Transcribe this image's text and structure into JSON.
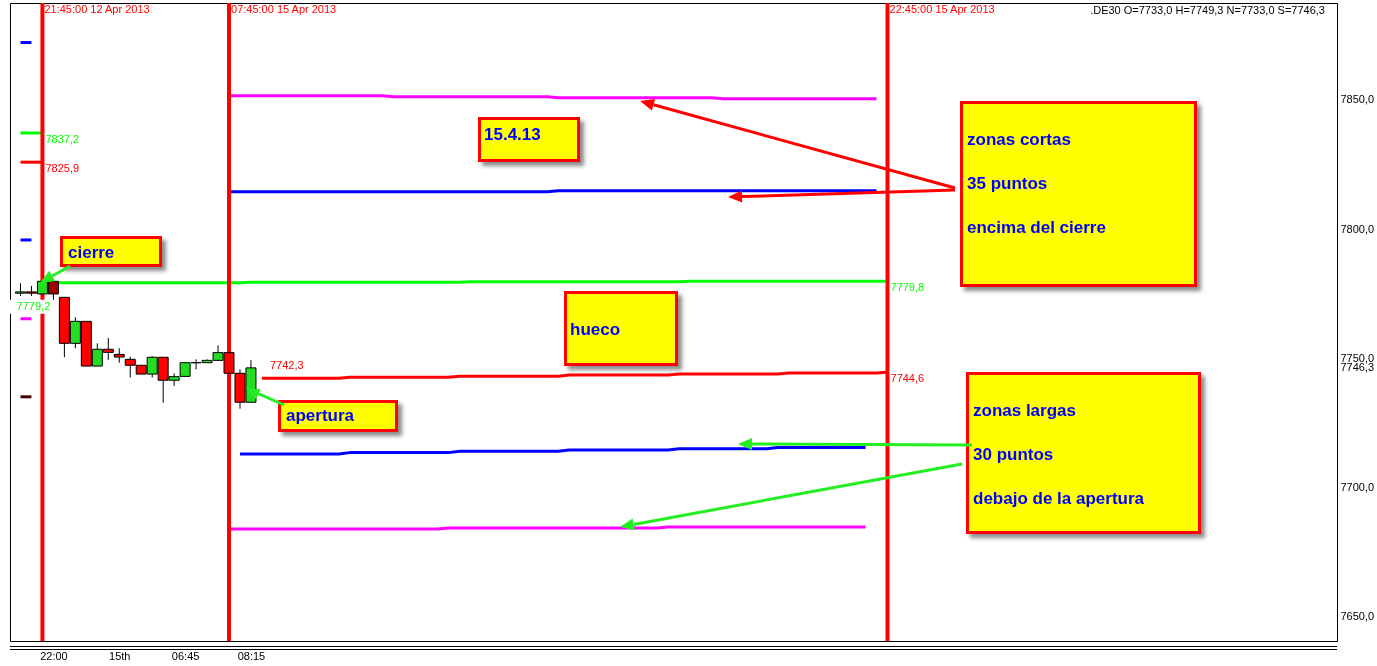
{
  "chart_data": {
    "type": "candlestick",
    "title": ".DE30 O=7733,0 H=7749,3 N=7733,0 S=7746,3",
    "categories": [
      null,
      null,
      null,
      "22:00",
      null,
      null,
      null,
      null,
      null,
      "15th",
      null,
      null,
      null,
      null,
      null,
      "06:45",
      null,
      null,
      null,
      null,
      null,
      "08:15",
      null,
      null,
      null,
      null,
      null,
      null,
      null,
      null,
      null,
      null,
      null,
      null,
      null,
      null,
      null,
      null,
      null,
      null,
      null,
      null,
      null,
      null,
      null,
      null,
      null,
      null,
      null,
      null,
      null,
      null,
      null,
      null,
      null,
      null,
      null,
      null,
      null,
      null,
      null,
      null,
      null,
      null,
      null,
      null,
      null,
      null,
      null,
      null,
      null,
      null,
      null,
      null,
      null,
      null,
      null,
      null,
      null,
      null,
      null,
      null,
      null,
      null,
      null,
      null,
      null,
      null,
      null,
      null,
      null,
      null,
      null,
      null,
      null,
      null,
      null,
      null,
      null,
      null,
      null,
      null,
      null,
      null,
      null,
      null,
      null,
      null,
      null,
      null,
      null,
      null,
      null,
      null,
      null,
      null,
      null,
      null,
      null,
      null
    ],
    "ohlc": [
      [
        7775.2,
        7779.0,
        7774.1,
        7775.7
      ],
      [
        7775.7,
        7778.0,
        7774.1,
        7775.2
      ],
      [
        7774.9,
        7779.8,
        7774.9,
        7779.8
      ],
      [
        7779.8,
        7779.8,
        7772.6,
        7774.9
      ],
      [
        7773.6,
        7773.6,
        7750.4,
        7755.8
      ],
      [
        7755.8,
        7765.9,
        7753.9,
        7764.3
      ],
      [
        7764.3,
        7764.3,
        7747.0,
        7747.0
      ],
      [
        7747.0,
        7755.8,
        7747.0,
        7753.5
      ],
      [
        7753.5,
        7757.9,
        7749.4,
        7752.3
      ],
      [
        7751.5,
        7753.9,
        7748.3,
        7750.5
      ],
      [
        7749.6,
        7750.6,
        7742.6,
        7747.3
      ],
      [
        7747.3,
        7747.3,
        7743.9,
        7743.9
      ],
      [
        7743.9,
        7750.9,
        7742.6,
        7750.4
      ],
      [
        7750.4,
        7750.4,
        7732.8,
        7741.5
      ],
      [
        7741.5,
        7744.2,
        7739.3,
        7742.9
      ],
      [
        7743.0,
        7748.3,
        7743.0,
        7748.3
      ],
      [
        7748.3,
        7749.6,
        7745.7,
        7748.3
      ],
      [
        7748.3,
        7749.6,
        7748.3,
        7749.2
      ],
      [
        7749.2,
        7755.0,
        7749.2,
        7752.2
      ],
      [
        7752.2,
        7752.2,
        7744.2,
        7744.2
      ],
      [
        7744.2,
        7745.7,
        7730.5,
        7733.0
      ],
      [
        7733.0,
        7749.3,
        7733.0,
        7746.3
      ],
      null,
      null,
      null,
      null,
      null,
      null,
      null,
      null,
      null,
      null,
      null,
      null,
      null,
      null,
      null,
      null,
      null,
      null,
      null,
      null,
      null,
      null,
      null,
      null,
      null,
      null,
      null,
      null,
      null,
      null,
      null,
      null,
      null,
      null,
      null,
      null,
      null,
      null,
      null,
      null,
      null,
      null,
      null,
      null,
      null,
      null,
      null,
      null,
      null,
      null,
      null,
      null,
      null,
      null,
      null,
      null,
      null,
      null,
      null,
      null,
      null,
      null,
      null,
      null,
      null,
      null,
      null,
      null,
      null,
      null,
      null,
      null,
      null,
      null,
      null,
      null,
      null,
      null,
      null,
      null,
      null,
      null,
      null,
      null,
      null,
      null,
      null,
      null,
      null,
      null,
      null,
      null,
      null,
      null,
      null,
      null,
      null,
      null
    ],
    "colors": [
      "#22dd22",
      "#ff0000",
      "#22dd22",
      "#a00000",
      "#ff0000",
      "#22dd22",
      "#ff0000",
      "#22dd22",
      "#ff0000",
      "#ff0000",
      "#ff0000",
      "#ff0000",
      "#22dd22",
      "#ff0000",
      "#22dd22",
      "#22dd22",
      "#000000",
      "#22dd22",
      "#22dd22",
      "#ff0000",
      "#ff0000",
      "#22dd22",
      null,
      null,
      null,
      null,
      null,
      null,
      null,
      null,
      null,
      null,
      null,
      null,
      null,
      null,
      null,
      null,
      null,
      null,
      null,
      null,
      null,
      null,
      null,
      null,
      null,
      null,
      null,
      null,
      null,
      null,
      null,
      null,
      null,
      null,
      null,
      null,
      null,
      null,
      null,
      null,
      null,
      null,
      null,
      null,
      null,
      null,
      null,
      null,
      null,
      null,
      null,
      null,
      null,
      null,
      null,
      null,
      null,
      null,
      null,
      null,
      null,
      null,
      null,
      null,
      null,
      null,
      null,
      null,
      null,
      null,
      null,
      null,
      null,
      null,
      null,
      null,
      null,
      null,
      null,
      null,
      null,
      null,
      null,
      null,
      null,
      null,
      null,
      null,
      null,
      null,
      null,
      null,
      null,
      null,
      null,
      null,
      null,
      null
    ],
    "ylim": [
      7640.6,
      7887.5
    ],
    "yticks": [
      {
        "value": 7650,
        "label": "7650,0"
      },
      {
        "value": 7700,
        "label": "7700,0"
      },
      {
        "value": 7746.3,
        "label": "7746,3"
      },
      {
        "value": 7750,
        "label": "7750,0"
      },
      {
        "value": 7800,
        "label": "7800,0"
      },
      {
        "value": 7850,
        "label": "7850,0"
      }
    ],
    "series": [
      {
        "type": "line",
        "color": "#0000ff",
        "values": [
          7872.2,
          7872.2,
          null,
          null,
          null,
          null,
          null,
          null,
          null,
          null,
          null,
          null,
          null,
          null,
          null,
          null,
          null,
          null,
          null,
          null,
          null,
          null,
          null,
          null,
          null,
          null,
          null,
          null,
          null,
          null,
          null,
          null,
          null,
          null,
          null,
          null,
          null,
          null,
          null,
          null,
          null,
          null,
          null,
          null,
          null,
          null,
          null,
          null,
          null,
          null,
          null,
          null,
          null,
          null,
          null,
          null,
          null,
          null,
          null,
          null,
          null,
          null,
          null,
          null,
          null,
          null,
          null,
          null,
          null,
          null,
          null,
          null,
          null,
          null,
          null,
          null,
          null,
          null,
          null,
          null,
          null,
          null,
          null,
          null,
          null,
          null,
          null,
          null,
          null,
          null,
          null,
          null,
          null,
          null,
          null,
          null,
          null,
          null,
          null,
          null,
          null,
          null,
          null,
          null,
          null,
          null,
          null,
          null,
          null,
          null,
          null,
          null,
          null,
          null,
          null,
          null,
          null,
          null,
          null,
          null
        ]
      },
      {
        "type": "line",
        "color": "#00ff00",
        "values": [
          7837.2,
          7837.2,
          7837.2,
          null,
          null,
          null,
          null,
          null,
          null,
          null,
          null,
          null,
          null,
          null,
          null,
          null,
          null,
          null,
          null,
          null,
          null,
          null,
          null,
          null,
          null,
          null,
          null,
          null,
          null,
          null,
          null,
          null,
          null,
          null,
          null,
          null,
          null,
          null,
          null,
          null,
          null,
          null,
          null,
          null,
          null,
          null,
          null,
          null,
          null,
          null,
          null,
          null,
          null,
          null,
          null,
          null,
          null,
          null,
          null,
          null,
          null,
          null,
          null,
          null,
          null,
          null,
          null,
          null,
          null,
          null,
          null,
          null,
          null,
          null,
          null,
          null,
          null,
          null,
          null,
          null,
          null,
          null,
          null,
          null,
          null,
          null,
          null,
          null,
          null,
          null,
          null,
          null,
          null,
          null,
          null,
          null,
          null,
          null,
          null,
          null,
          null,
          null,
          null,
          null,
          null,
          null,
          null,
          null,
          null,
          null,
          null,
          null,
          null,
          null,
          null,
          null,
          null,
          null,
          null,
          null
        ],
        "value_labels": [
          null,
          null,
          "7837,2",
          null,
          null,
          null,
          null,
          null,
          null,
          null,
          null,
          null,
          null,
          null,
          null,
          null,
          null,
          null,
          null,
          null,
          null,
          null,
          null,
          null,
          null,
          null,
          null,
          null,
          null,
          null,
          null,
          null,
          null,
          null,
          null,
          null,
          null,
          null,
          null,
          null,
          null,
          null,
          null,
          null,
          null,
          null,
          null,
          null,
          null,
          null,
          null,
          null,
          null,
          null,
          null,
          null,
          null,
          null,
          null,
          null,
          null,
          null,
          null,
          null,
          null,
          null,
          null,
          null,
          null,
          null,
          null,
          null,
          null,
          null,
          null,
          null,
          null,
          null,
          null,
          null,
          null,
          null,
          null,
          null,
          null,
          null,
          null,
          null,
          null,
          null,
          null,
          null,
          null,
          null,
          null,
          null,
          null,
          null,
          null,
          null,
          null,
          null,
          null,
          null,
          null,
          null,
          null,
          null,
          null,
          null,
          null,
          null,
          null,
          null,
          null,
          null,
          null,
          null,
          null,
          null
        ]
      },
      {
        "type": "line",
        "color": "#ff0000",
        "values": [
          7825.9,
          7825.9,
          7825.9,
          null,
          null,
          null,
          null,
          null,
          null,
          null,
          null,
          null,
          null,
          null,
          null,
          null,
          null,
          null,
          null,
          null,
          null,
          null,
          null,
          null,
          null,
          null,
          null,
          null,
          null,
          null,
          null,
          null,
          null,
          null,
          null,
          null,
          null,
          null,
          null,
          null,
          null,
          null,
          null,
          null,
          null,
          null,
          null,
          null,
          null,
          null,
          null,
          null,
          null,
          null,
          null,
          null,
          null,
          null,
          null,
          null,
          null,
          null,
          null,
          null,
          null,
          null,
          null,
          null,
          null,
          null,
          null,
          null,
          null,
          null,
          null,
          null,
          null,
          null,
          null,
          null,
          null,
          null,
          null,
          null,
          null,
          null,
          null,
          null,
          null,
          null,
          null,
          null,
          null,
          null,
          null,
          null,
          null,
          null,
          null,
          null,
          null,
          null,
          null,
          null,
          null,
          null,
          null,
          null,
          null,
          null,
          null,
          null,
          null,
          null,
          null,
          null,
          null,
          null,
          null,
          null
        ],
        "value_labels": [
          null,
          null,
          "7825,9",
          null,
          null,
          null,
          null,
          null,
          null,
          null,
          null,
          null,
          null,
          null,
          null,
          null,
          null,
          null,
          null,
          null,
          null,
          null,
          null,
          null,
          null,
          null,
          null,
          null,
          null,
          null,
          null,
          null,
          null,
          null,
          null,
          null,
          null,
          null,
          null,
          null,
          null,
          null,
          null,
          null,
          null,
          null,
          null,
          null,
          null,
          null,
          null,
          null,
          null,
          null,
          null,
          null,
          null,
          null,
          null,
          null,
          null,
          null,
          null,
          null,
          null,
          null,
          null,
          null,
          null,
          null,
          null,
          null,
          null,
          null,
          null,
          null,
          null,
          null,
          null,
          null,
          null,
          null,
          null,
          null,
          null,
          null,
          null,
          null,
          null,
          null,
          null,
          null,
          null,
          null,
          null,
          null,
          null,
          null,
          null,
          null,
          null,
          null,
          null,
          null,
          null,
          null,
          null,
          null,
          null,
          null,
          null,
          null,
          null,
          null,
          null,
          null,
          null,
          null,
          null,
          null
        ]
      },
      {
        "type": "line",
        "color": "#0000ff",
        "values": [
          7795.8,
          7795.8,
          null,
          null,
          null,
          null,
          null,
          null,
          null,
          null,
          null,
          null,
          null,
          null,
          null,
          null,
          null,
          null,
          null,
          null,
          null,
          null,
          null,
          null,
          null,
          null,
          null,
          null,
          null,
          null,
          null,
          null,
          null,
          null,
          null,
          null,
          null,
          null,
          null,
          null,
          null,
          null,
          null,
          null,
          null,
          null,
          null,
          null,
          null,
          null,
          null,
          null,
          null,
          null,
          null,
          null,
          null,
          null,
          null,
          null,
          null,
          null,
          null,
          null,
          null,
          null,
          null,
          null,
          null,
          null,
          null,
          null,
          null,
          null,
          null,
          null,
          null,
          null,
          null,
          null,
          null,
          null,
          null,
          null,
          null,
          null,
          null,
          null,
          null,
          null,
          null,
          null,
          null,
          null,
          null,
          null,
          null,
          null,
          null,
          null,
          null,
          null,
          null,
          null,
          null,
          null,
          null,
          null,
          null,
          null,
          null,
          null,
          null,
          null,
          null,
          null,
          null,
          null,
          null,
          null
        ]
      },
      {
        "type": "line",
        "color": "#ff00ff",
        "values": [
          7765.3,
          7765.3,
          null,
          null,
          null,
          null,
          null,
          null,
          null,
          null,
          null,
          null,
          null,
          null,
          null,
          null,
          null,
          null,
          null,
          null,
          null,
          null,
          null,
          null,
          null,
          null,
          null,
          null,
          null,
          null,
          null,
          null,
          null,
          null,
          null,
          null,
          null,
          null,
          null,
          null,
          null,
          null,
          null,
          null,
          null,
          null,
          null,
          null,
          null,
          null,
          null,
          null,
          null,
          null,
          null,
          null,
          null,
          null,
          null,
          null,
          null,
          null,
          null,
          null,
          null,
          null,
          null,
          null,
          null,
          null,
          null,
          null,
          null,
          null,
          null,
          null,
          null,
          null,
          null,
          null,
          null,
          null,
          null,
          null,
          null,
          null,
          null,
          null,
          null,
          null,
          null,
          null,
          null,
          null,
          null,
          null,
          null,
          null,
          null,
          null,
          null,
          null,
          null,
          null,
          null,
          null,
          null,
          null,
          null,
          null,
          null,
          null,
          null,
          null,
          null,
          null,
          null,
          null,
          null,
          null
        ]
      },
      {
        "type": "line",
        "color": "#400000",
        "values": [
          7735.1,
          7735.1,
          null,
          null,
          null,
          null,
          null,
          null,
          null,
          null,
          null,
          null,
          null,
          null,
          null,
          null,
          null,
          null,
          null,
          null,
          null,
          null,
          null,
          null,
          null,
          null,
          null,
          null,
          null,
          null,
          null,
          null,
          null,
          null,
          null,
          null,
          null,
          null,
          null,
          null,
          null,
          null,
          null,
          null,
          null,
          null,
          null,
          null,
          null,
          null,
          null,
          null,
          null,
          null,
          null,
          null,
          null,
          null,
          null,
          null,
          null,
          null,
          null,
          null,
          null,
          null,
          null,
          null,
          null,
          null,
          null,
          null,
          null,
          null,
          null,
          null,
          null,
          null,
          null,
          null,
          null,
          null,
          null,
          null,
          null,
          null,
          null,
          null,
          null,
          null,
          null,
          null,
          null,
          null,
          null,
          null,
          null,
          null,
          null,
          null,
          null,
          null,
          null,
          null,
          null,
          null,
          null,
          null,
          null,
          null,
          null,
          null,
          null,
          null,
          null,
          null,
          null,
          null,
          null,
          null
        ]
      },
      {
        "type": "line",
        "color": "#ff00ff",
        "values": [
          null,
          null,
          null,
          null,
          null,
          null,
          null,
          null,
          null,
          null,
          null,
          null,
          null,
          null,
          null,
          null,
          null,
          null,
          null,
          7851.6,
          7851.6,
          7851.6,
          7851.6,
          7851.6,
          7851.6,
          7851.6,
          7851.6,
          7851.6,
          7851.6,
          7851.6,
          7851.6,
          7851.6,
          7851.6,
          7851.6,
          7851.2,
          7851.2,
          7851.2,
          7851.2,
          7851.2,
          7851.2,
          7851.2,
          7851.2,
          7851.2,
          7851.2,
          7851.2,
          7851.2,
          7851.2,
          7851.2,
          7851.2,
          7850.8,
          7850.8,
          7850.8,
          7850.8,
          7850.8,
          7850.8,
          7850.8,
          7850.8,
          7850.8,
          7850.8,
          7850.8,
          7850.8,
          7850.8,
          7850.8,
          7850.8,
          7850.4,
          7850.4,
          7850.4,
          7850.4,
          7850.4,
          7850.4,
          7850.4,
          7850.4,
          7850.4,
          7850.4,
          7850.4,
          7850.4,
          7850.4,
          7850.4,
          7850.4,
          null,
          null,
          null,
          null,
          null,
          null,
          null,
          null,
          null,
          null,
          null,
          null,
          null,
          null,
          null,
          null,
          null,
          null,
          null,
          null,
          null,
          null,
          null,
          null,
          null,
          null,
          null,
          null,
          null,
          null,
          null,
          null,
          null,
          null,
          null,
          null,
          null,
          null,
          null,
          null,
          null
        ]
      },
      {
        "type": "line",
        "color": "#0000ff",
        "values": [
          null,
          null,
          null,
          null,
          null,
          null,
          null,
          null,
          null,
          null,
          null,
          null,
          null,
          null,
          null,
          null,
          null,
          null,
          null,
          7814.5,
          7814.5,
          7814.5,
          7814.5,
          7814.5,
          7814.5,
          7814.5,
          7814.5,
          7814.5,
          7814.5,
          7814.5,
          7814.5,
          7814.5,
          7814.5,
          7814.5,
          7814.5,
          7814.5,
          7814.5,
          7814.5,
          7814.5,
          7814.5,
          7814.5,
          7814.5,
          7814.5,
          7814.5,
          7814.5,
          7814.5,
          7814.5,
          7814.5,
          7814.5,
          7814.8,
          7814.8,
          7814.8,
          7814.8,
          7814.8,
          7814.8,
          7814.8,
          7814.8,
          7814.8,
          7814.8,
          7814.8,
          7814.8,
          7814.8,
          7814.8,
          7814.8,
          7814.8,
          7814.8,
          7814.8,
          7814.8,
          7814.8,
          7814.8,
          7814.8,
          7814.8,
          7814.8,
          7814.8,
          7814.8,
          7814.8,
          7814.8,
          7814.8,
          7814.8,
          null,
          null,
          null,
          null,
          null,
          null,
          null,
          null,
          null,
          null,
          null,
          null,
          null,
          null,
          null,
          null,
          null,
          null,
          null,
          null,
          null,
          null,
          null,
          null,
          null,
          null,
          null,
          null,
          null,
          null,
          null,
          null,
          null,
          null,
          null,
          null,
          null,
          null,
          null,
          null,
          null
        ]
      },
      {
        "type": "line",
        "color": "#00ff00",
        "values": [
          null,
          null,
          7779.2,
          7779.2,
          7779.2,
          7779.2,
          7779.2,
          7779.2,
          7779.2,
          7779.2,
          7779.2,
          7779.2,
          7779.2,
          7779.2,
          7779.2,
          7779.2,
          7779.2,
          7779.2,
          7779.2,
          7779.2,
          7779.2,
          7779.4,
          7779.4,
          7779.4,
          7779.4,
          7779.4,
          7779.4,
          7779.4,
          7779.4,
          7779.4,
          7779.4,
          7779.4,
          7779.4,
          7779.4,
          7779.4,
          7779.4,
          7779.4,
          7779.4,
          7779.4,
          7779.4,
          7779.4,
          7779.6,
          7779.6,
          7779.6,
          7779.6,
          7779.6,
          7779.6,
          7779.6,
          7779.6,
          7779.6,
          7779.6,
          7779.6,
          7779.6,
          7779.6,
          7779.6,
          7779.6,
          7779.6,
          7779.6,
          7779.6,
          7779.6,
          7779.6,
          7779.8,
          7779.8,
          7779.8,
          7779.8,
          7779.8,
          7779.8,
          7779.8,
          7779.8,
          7779.8,
          7779.8,
          7779.8,
          7779.8,
          7779.8,
          7779.8,
          7779.8,
          7779.8,
          7779.8,
          7779.8,
          7779.8,
          null,
          null,
          null,
          null,
          null,
          null,
          null,
          null,
          null,
          null,
          null,
          null,
          null,
          null,
          null,
          null,
          null,
          null,
          null,
          null,
          null,
          null,
          null,
          null,
          null,
          null,
          null,
          null,
          null,
          null,
          null,
          null,
          null,
          null,
          null,
          null,
          null,
          null,
          null,
          null
        ],
        "value_labels": [
          null,
          null,
          "7779,2",
          null,
          null,
          null,
          null,
          null,
          null,
          null,
          null,
          null,
          null,
          null,
          null,
          null,
          null,
          null,
          null,
          null,
          null,
          null,
          null,
          null,
          null,
          null,
          null,
          null,
          null,
          null,
          null,
          null,
          null,
          null,
          null,
          null,
          null,
          null,
          null,
          null,
          null,
          null,
          null,
          null,
          null,
          null,
          null,
          null,
          null,
          null,
          null,
          null,
          null,
          null,
          null,
          null,
          null,
          null,
          null,
          null,
          null,
          null,
          null,
          null,
          null,
          null,
          null,
          null,
          null,
          null,
          null,
          null,
          null,
          null,
          null,
          null,
          null,
          null,
          null,
          "7779,8",
          null,
          null,
          null,
          null,
          null,
          null,
          null,
          null,
          null,
          null,
          null,
          null,
          null,
          null,
          null,
          null,
          null,
          null,
          null,
          null,
          null,
          null,
          null,
          null,
          null,
          null,
          null,
          null,
          null,
          null,
          null,
          null,
          null,
          null,
          null,
          null,
          null,
          null,
          null,
          null
        ]
      },
      {
        "type": "line",
        "color": "#ff0000",
        "values": [
          null,
          null,
          null,
          null,
          null,
          null,
          null,
          null,
          null,
          null,
          null,
          null,
          null,
          null,
          null,
          null,
          null,
          null,
          null,
          null,
          null,
          null,
          7742.3,
          7742.3,
          7742.3,
          7742.3,
          7742.3,
          7742.3,
          7742.3,
          7742.3,
          7742.7,
          7742.7,
          7742.7,
          7742.7,
          7742.7,
          7742.7,
          7742.7,
          7742.7,
          7742.7,
          7742.7,
          7743.1,
          7743.1,
          7743.1,
          7743.1,
          7743.1,
          7743.1,
          7743.1,
          7743.1,
          7743.1,
          7743.1,
          7743.5,
          7743.5,
          7743.5,
          7743.5,
          7743.5,
          7743.5,
          7743.5,
          7743.5,
          7743.5,
          7743.5,
          7743.9,
          7743.9,
          7743.9,
          7743.9,
          7743.9,
          7743.9,
          7743.9,
          7743.9,
          7743.9,
          7743.9,
          7744.3,
          7744.3,
          7744.3,
          7744.3,
          7744.3,
          7744.3,
          7744.3,
          7744.3,
          7744.3,
          7744.6,
          null,
          null,
          null,
          null,
          null,
          null,
          null,
          null,
          null,
          null,
          null,
          null,
          null,
          null,
          null,
          null,
          null,
          null,
          null,
          null,
          null,
          null,
          null,
          null,
          null,
          null,
          null,
          null,
          null,
          null,
          null,
          null,
          null,
          null,
          null,
          null,
          null,
          null,
          null,
          null
        ],
        "value_labels": [
          null,
          null,
          null,
          null,
          null,
          null,
          null,
          null,
          null,
          null,
          null,
          null,
          null,
          null,
          null,
          null,
          null,
          null,
          null,
          null,
          null,
          null,
          "7742,3",
          null,
          null,
          null,
          null,
          null,
          null,
          null,
          null,
          null,
          null,
          null,
          null,
          null,
          null,
          null,
          null,
          null,
          null,
          null,
          null,
          null,
          null,
          null,
          null,
          null,
          null,
          null,
          null,
          null,
          null,
          null,
          null,
          null,
          null,
          null,
          null,
          null,
          null,
          null,
          null,
          null,
          null,
          null,
          null,
          null,
          null,
          null,
          null,
          null,
          null,
          null,
          null,
          null,
          null,
          null,
          null,
          "7744,6",
          null,
          null,
          null,
          null,
          null,
          null,
          null,
          null,
          null,
          null,
          null,
          null,
          null,
          null,
          null,
          null,
          null,
          null,
          null,
          null,
          null,
          null,
          null,
          null,
          null,
          null,
          null,
          null,
          null,
          null,
          null,
          null,
          null,
          null,
          null,
          null,
          null,
          null,
          null,
          null
        ]
      },
      {
        "type": "line",
        "color": "#0000ff",
        "values": [
          null,
          null,
          null,
          null,
          null,
          null,
          null,
          null,
          null,
          null,
          null,
          null,
          null,
          null,
          null,
          null,
          null,
          null,
          null,
          null,
          7713.0,
          7713.0,
          7713.0,
          7713.0,
          7713.0,
          7713.0,
          7713.0,
          7713.0,
          7713.0,
          7713.0,
          7713.5,
          7713.5,
          7713.5,
          7713.5,
          7713.5,
          7713.5,
          7713.5,
          7713.5,
          7713.5,
          7713.5,
          7714.0,
          7714.0,
          7714.0,
          7714.0,
          7714.0,
          7714.0,
          7714.0,
          7714.0,
          7714.0,
          7714.0,
          7714.5,
          7714.5,
          7714.5,
          7714.5,
          7714.5,
          7714.5,
          7714.5,
          7714.5,
          7714.5,
          7714.5,
          7715.0,
          7715.0,
          7715.0,
          7715.0,
          7715.0,
          7715.0,
          7715.0,
          7715.0,
          7715.0,
          7715.5,
          7715.5,
          7715.5,
          7715.5,
          7715.5,
          7715.5,
          7715.5,
          7715.5,
          7715.5,
          null,
          null,
          null,
          null,
          null,
          null,
          null,
          null,
          null,
          null,
          null,
          null,
          null,
          null,
          null,
          null,
          null,
          null,
          null,
          null,
          null,
          null,
          null,
          null,
          null,
          null,
          null,
          null,
          null,
          null,
          null,
          null,
          null,
          null,
          null,
          null,
          null,
          null,
          null,
          null,
          null,
          null
        ]
      },
      {
        "type": "line",
        "color": "#ff00ff",
        "values": [
          null,
          null,
          null,
          null,
          null,
          null,
          null,
          null,
          null,
          null,
          null,
          null,
          null,
          null,
          null,
          null,
          null,
          null,
          null,
          7683.9,
          7683.9,
          7683.9,
          7683.9,
          7683.9,
          7683.9,
          7683.9,
          7683.9,
          7683.9,
          7683.9,
          7683.9,
          7683.9,
          7683.9,
          7683.9,
          7683.9,
          7683.9,
          7683.9,
          7683.9,
          7683.9,
          7683.9,
          7684.3,
          7684.3,
          7684.3,
          7684.3,
          7684.3,
          7684.3,
          7684.3,
          7684.3,
          7684.3,
          7684.3,
          7684.3,
          7684.3,
          7684.3,
          7684.3,
          7684.3,
          7684.3,
          7684.3,
          7684.3,
          7684.3,
          7684.3,
          7684.7,
          7684.7,
          7684.7,
          7684.7,
          7684.7,
          7684.7,
          7684.7,
          7684.7,
          7684.7,
          7684.7,
          7684.7,
          7684.7,
          7684.7,
          7684.7,
          7684.7,
          7684.7,
          7684.7,
          7684.7,
          7684.7,
          null,
          null,
          null,
          null,
          null,
          null,
          null,
          null,
          null,
          null,
          null,
          null,
          null,
          null,
          null,
          null,
          null,
          null,
          null,
          null,
          null,
          null,
          null,
          null,
          null,
          null,
          null,
          null,
          null,
          null,
          null,
          null,
          null,
          null,
          null,
          null,
          null,
          null,
          null,
          null,
          null,
          null
        ]
      }
    ],
    "annotations": [
      "15.4.13",
      {
        "text": "cierre",
        "y": 7779.2
      },
      {
        "text": "apertura",
        "x": "08:15",
        "y": 7738.5
      },
      "hueco",
      "zonas cortas\n35 puntos\nencima del cierre",
      "zonas largas\n30 puntos\ndebajo de la apertura",
      "21:45:00 12 Apr 2013",
      "07:45:00 15 Apr 2013",
      "22:45:00 15 Apr 2013"
    ]
  }
}
